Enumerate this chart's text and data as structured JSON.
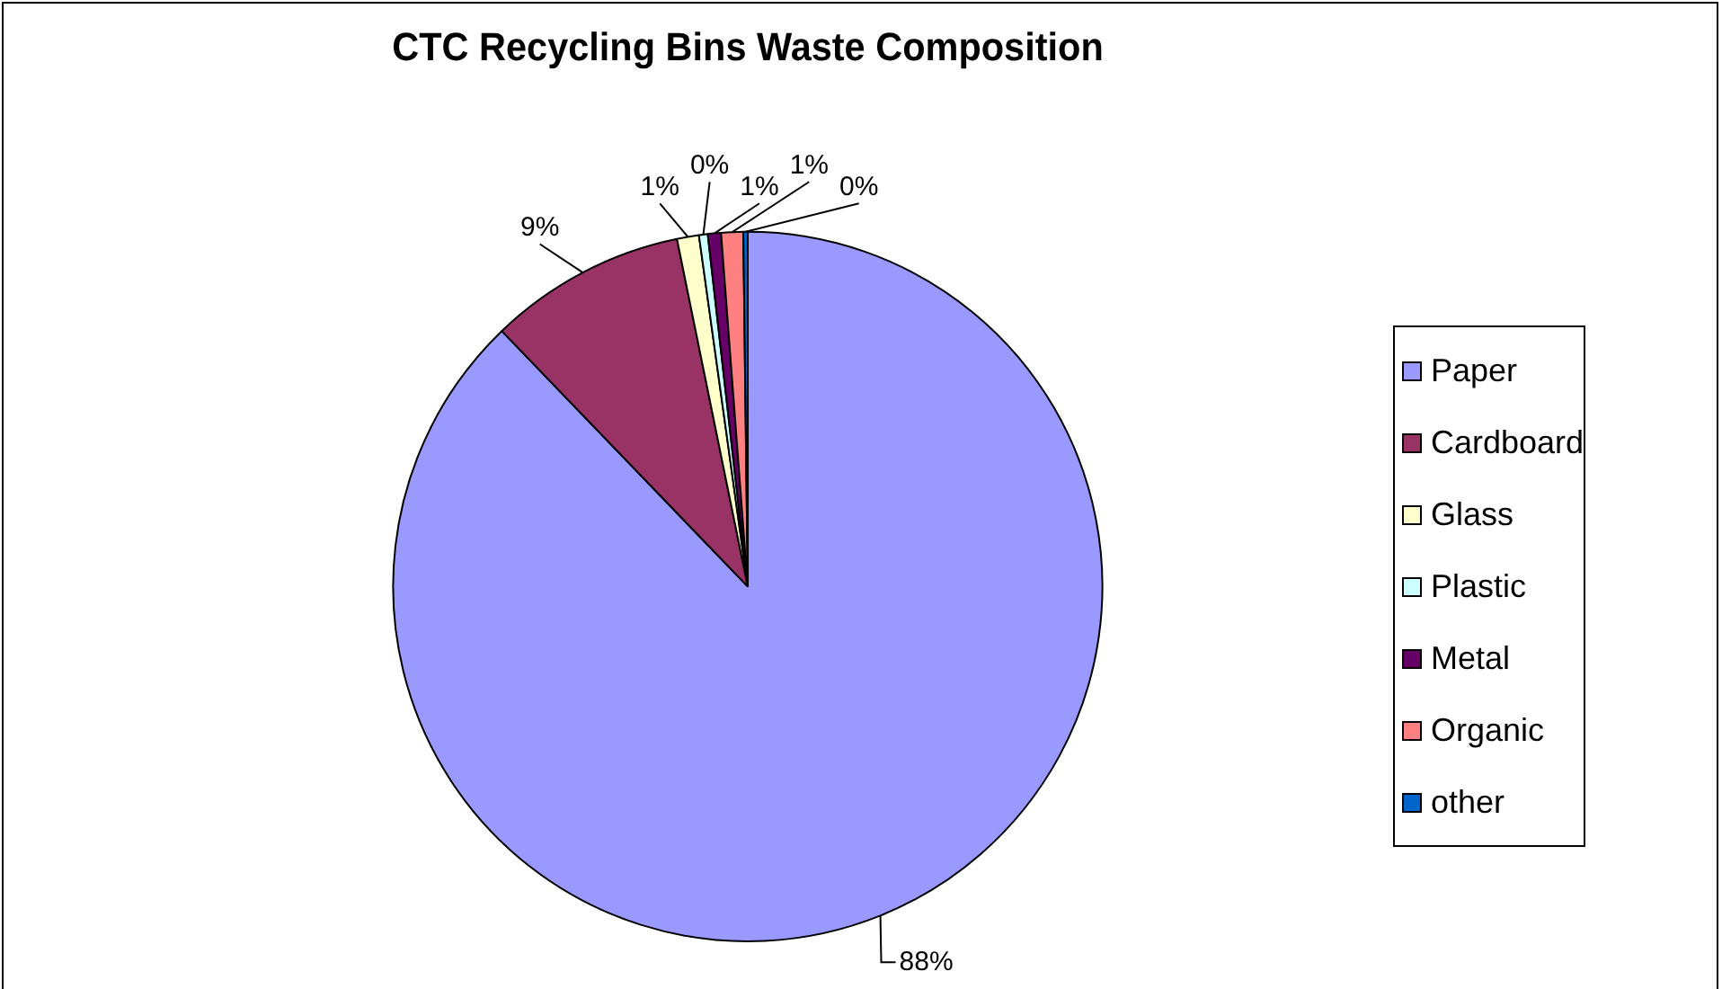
{
  "chart_data": {
    "type": "pie",
    "title": "CTC Recycling Bins Waste Composition",
    "categories": [
      "Paper",
      "Cardboard",
      "Glass",
      "Plastic",
      "Metal",
      "Organic",
      "other"
    ],
    "values": [
      87.8,
      9.0,
      1.0,
      0.4,
      0.6,
      1.0,
      0.2
    ],
    "value_labels": [
      "88%",
      "9%",
      "1%",
      "0%",
      "1%",
      "1%",
      "0%"
    ],
    "colors": [
      "#9999ff",
      "#993366",
      "#ffffcc",
      "#ccffff",
      "#660066",
      "#ff8080",
      "#0066cc"
    ],
    "legend": "right"
  }
}
